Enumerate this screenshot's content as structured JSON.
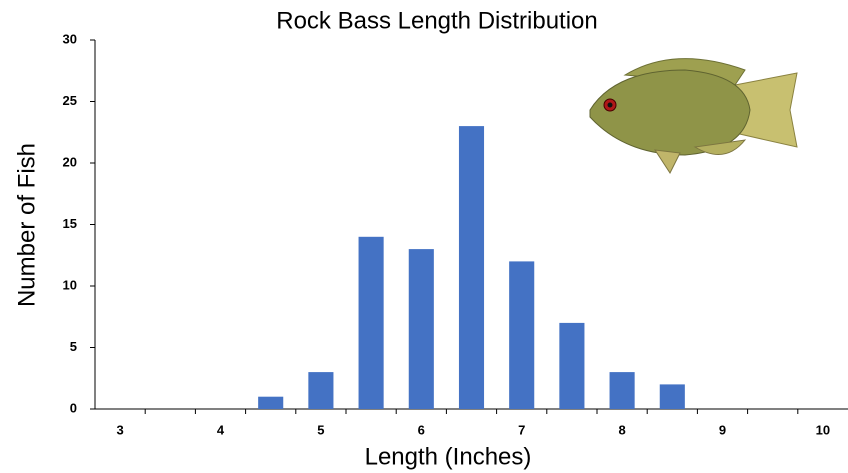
{
  "chart_data": {
    "type": "bar",
    "title": "Rock Bass Length Distribution",
    "x_label": "Length (Inches)",
    "y_label": "Number of Fish",
    "categories": [
      "3",
      null,
      "4",
      null,
      "5",
      null,
      "6",
      null,
      "7",
      null,
      "8",
      null,
      "9",
      null,
      "10"
    ],
    "values": [
      0,
      0,
      0,
      1,
      3,
      14,
      13,
      23,
      12,
      7,
      3,
      2,
      0,
      0,
      0
    ],
    "color": "#4472c4",
    "ylim": [
      0,
      30
    ],
    "yticks": [
      0,
      5,
      10,
      15,
      20,
      25,
      30
    ],
    "grid": false
  }
}
